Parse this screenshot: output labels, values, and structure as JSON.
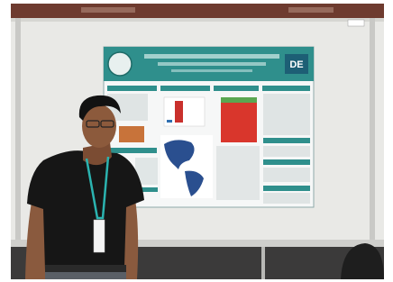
{
  "poster": {
    "logo_text": "DE"
  }
}
